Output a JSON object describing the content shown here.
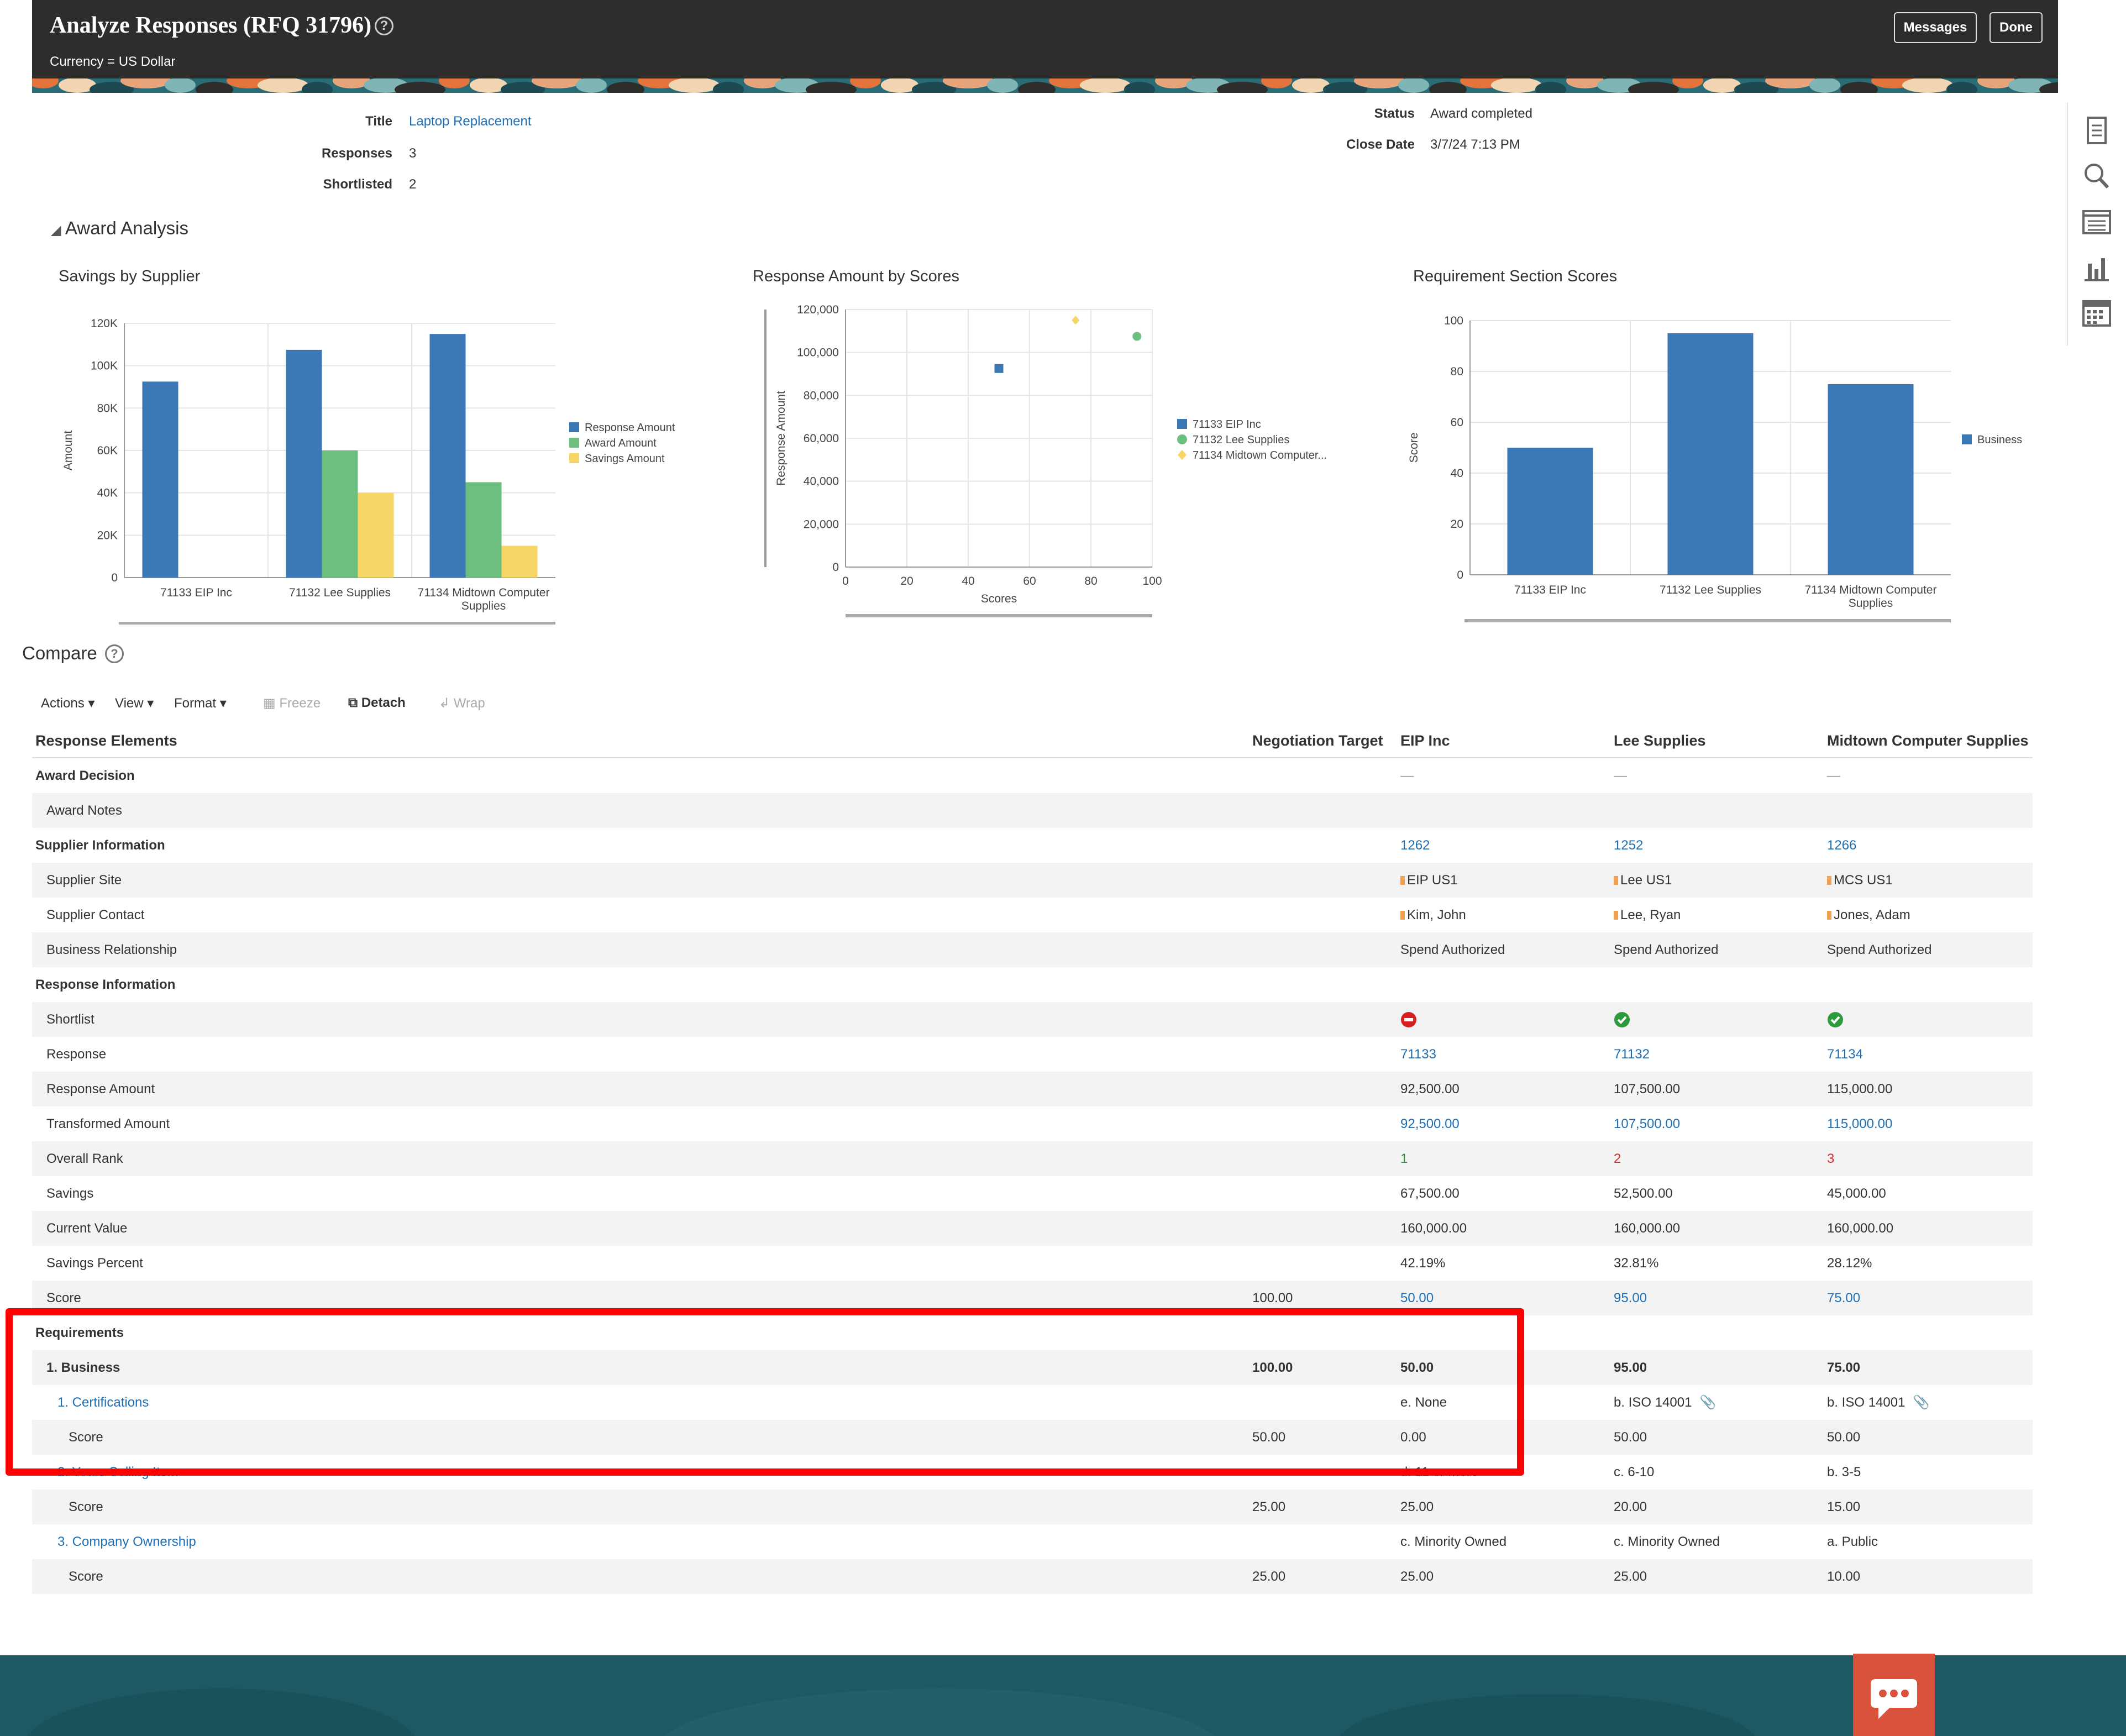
{
  "header": {
    "title": "Analyze Responses (RFQ 31796)",
    "currency": "Currency = US Dollar",
    "messages_label": "Messages",
    "done_label": "Done",
    "help_glyph": "?"
  },
  "summary": {
    "title_label": "Title",
    "title_value": "Laptop Replacement",
    "responses_label": "Responses",
    "responses_value": "3",
    "shortlisted_label": "Shortlisted",
    "shortlisted_value": "2",
    "status_label": "Status",
    "status_value": "Award completed",
    "close_date_label": "Close Date",
    "close_date_value": "3/7/24 7:13 PM"
  },
  "award_analysis": {
    "heading": "Award Analysis",
    "charts": {
      "savings": {
        "title": "Savings by Supplier",
        "ylabel": "Amount",
        "yticks": [
          "0",
          "20K",
          "40K",
          "60K",
          "80K",
          "100K",
          "120K"
        ],
        "cat_lines": [
          [
            "71133 EIP Inc"
          ],
          [
            "71132 Lee Supplies"
          ],
          [
            "71134 Midtown Computer",
            "Supplies"
          ]
        ],
        "legend": [
          "Response Amount",
          "Award Amount",
          "Savings Amount"
        ]
      },
      "scatter": {
        "title": "Response Amount by Scores",
        "ylabel": "Response Amount",
        "xlabel": "Scores",
        "yticks": [
          "0",
          "20,000",
          "40,000",
          "60,000",
          "80,000",
          "100,000",
          "120,000"
        ],
        "xticks": [
          "0",
          "20",
          "40",
          "60",
          "80",
          "100"
        ],
        "legend": [
          "71133 EIP Inc",
          "71132 Lee Supplies",
          "71134 Midtown Computer..."
        ]
      },
      "req_scores": {
        "title": "Requirement Section Scores",
        "ylabel": "Score",
        "yticks": [
          "0",
          "20",
          "40",
          "60",
          "80",
          "100"
        ],
        "cat_lines": [
          [
            "71133 EIP Inc"
          ],
          [
            "71132 Lee Supplies"
          ],
          [
            "71134 Midtown Computer",
            "Supplies"
          ]
        ],
        "legend": [
          "Business"
        ]
      }
    }
  },
  "chart_data": [
    {
      "type": "bar",
      "title": "Savings by Supplier",
      "ylabel": "Amount",
      "categories": [
        "71133 EIP Inc",
        "71132 Lee Supplies",
        "71134 Midtown Computer Supplies"
      ],
      "series": [
        {
          "name": "Response Amount",
          "values": [
            92500,
            107500,
            115000
          ],
          "color": "#3b78b5"
        },
        {
          "name": "Award Amount",
          "values": [
            0,
            60000,
            45000
          ],
          "color": "#6dbf7f"
        },
        {
          "name": "Savings Amount",
          "values": [
            0,
            40000,
            15000
          ],
          "color": "#f5d565"
        }
      ],
      "ylim": [
        0,
        120000
      ],
      "legend": "right"
    },
    {
      "type": "scatter",
      "title": "Response Amount by Scores",
      "xlabel": "Scores",
      "ylabel": "Response Amount",
      "series": [
        {
          "name": "71133 EIP Inc",
          "x": [
            50
          ],
          "y": [
            92500
          ],
          "color": "#3b78b5"
        },
        {
          "name": "71132 Lee Supplies",
          "x": [
            95
          ],
          "y": [
            107500
          ],
          "color": "#6dbf7f"
        },
        {
          "name": "71134 Midtown Computer...",
          "x": [
            75
          ],
          "y": [
            115000
          ],
          "color": "#f5d565"
        }
      ],
      "xlim": [
        0,
        100
      ],
      "ylim": [
        0,
        120000
      ],
      "legend": "right"
    },
    {
      "type": "bar",
      "title": "Requirement Section Scores",
      "ylabel": "Score",
      "categories": [
        "71133 EIP Inc",
        "71132 Lee Supplies",
        "71134 Midtown Computer Supplies"
      ],
      "series": [
        {
          "name": "Business",
          "values": [
            50,
            95,
            75
          ],
          "color": "#3b78b5"
        }
      ],
      "ylim": [
        0,
        100
      ],
      "legend": "right"
    }
  ],
  "compare": {
    "title": "Compare",
    "toolbar": {
      "actions": "Actions",
      "view": "View",
      "format": "Format",
      "freeze": "Freeze",
      "detach": "Detach",
      "wrap": "Wrap"
    },
    "columns": {
      "elements": "Response Elements",
      "target": "Negotiation Target",
      "c1": "EIP Inc",
      "c2": "Lee Supplies",
      "c3": "Midtown Computer Supplies"
    },
    "rows": [
      {
        "label": "Award Decision",
        "indent": 0,
        "bold": true,
        "target": "",
        "c1": "—",
        "c2": "—",
        "c3": "—",
        "style": "dash"
      },
      {
        "label": "Award Notes",
        "indent": 1,
        "bold": false,
        "target": "",
        "c1": "",
        "c2": "",
        "c3": ""
      },
      {
        "label": "Supplier Information",
        "indent": 0,
        "bold": true,
        "target": "",
        "c1": "1262",
        "c2": "1252",
        "c3": "1266",
        "style": "link"
      },
      {
        "label": "Supplier Site",
        "indent": 1,
        "bold": false,
        "target": "",
        "c1": "EIP US1",
        "c2": "Lee US1",
        "c3": "MCS US1",
        "style": "flag"
      },
      {
        "label": "Supplier Contact",
        "indent": 1,
        "bold": false,
        "target": "",
        "c1": "Kim, John",
        "c2": "Lee, Ryan",
        "c3": "Jones, Adam",
        "style": "flag"
      },
      {
        "label": "Business Relationship",
        "indent": 1,
        "bold": false,
        "target": "",
        "c1": "Spend Authorized",
        "c2": "Spend Authorized",
        "c3": "Spend Authorized"
      },
      {
        "label": "Response Information",
        "indent": 0,
        "bold": true,
        "target": "",
        "c1": "",
        "c2": "",
        "c3": ""
      },
      {
        "label": "Shortlist",
        "indent": 1,
        "bold": false,
        "target": "",
        "c1": "",
        "c2": "",
        "c3": "",
        "style": "shortlist"
      },
      {
        "label": "Response",
        "indent": 1,
        "bold": false,
        "target": "",
        "c1": "71133",
        "c2": "71132",
        "c3": "71134",
        "style": "link"
      },
      {
        "label": "Response Amount",
        "indent": 1,
        "bold": false,
        "target": "",
        "c1": "92,500.00",
        "c2": "107,500.00",
        "c3": "115,000.00"
      },
      {
        "label": "Transformed Amount",
        "indent": 1,
        "bold": false,
        "target": "",
        "c1": "92,500.00",
        "c2": "107,500.00",
        "c3": "115,000.00",
        "style": "link"
      },
      {
        "label": "Overall Rank",
        "indent": 1,
        "bold": false,
        "target": "",
        "c1": "1",
        "c2": "2",
        "c3": "3",
        "style": "rank"
      },
      {
        "label": "Savings",
        "indent": 1,
        "bold": false,
        "target": "",
        "c1": "67,500.00",
        "c2": "52,500.00",
        "c3": "45,000.00"
      },
      {
        "label": "Current Value",
        "indent": 1,
        "bold": false,
        "target": "",
        "c1": "160,000.00",
        "c2": "160,000.00",
        "c3": "160,000.00"
      },
      {
        "label": "Savings Percent",
        "indent": 1,
        "bold": false,
        "target": "",
        "c1": "42.19%",
        "c2": "32.81%",
        "c3": "28.12%"
      },
      {
        "label": "Score",
        "indent": 1,
        "bold": false,
        "target": "100.00",
        "c1": "50.00",
        "c2": "95.00",
        "c3": "75.00",
        "style": "link"
      },
      {
        "label": "Requirements",
        "indent": 0,
        "bold": true,
        "target": "",
        "c1": "",
        "c2": "",
        "c3": ""
      },
      {
        "label": "1. Business",
        "indent": 1,
        "bold": true,
        "target": "100.00",
        "c1": "50.00",
        "c2": "95.00",
        "c3": "75.00"
      },
      {
        "label": "1. Certifications",
        "indent": 2,
        "bold": false,
        "target": "",
        "c1": "e. None",
        "c2": "b. ISO 14001",
        "c3": "b. ISO 14001",
        "style": "cert",
        "labelLink": true
      },
      {
        "label": "Score",
        "indent": 3,
        "bold": false,
        "target": "50.00",
        "c1": "0.00",
        "c2": "50.00",
        "c3": "50.00"
      },
      {
        "label": "2. Years Selling Item",
        "indent": 2,
        "bold": false,
        "target": "",
        "c1": "d. 11 or more",
        "c2": "c. 6-10",
        "c3": "b. 3-5",
        "labelLink": true
      },
      {
        "label": "Score",
        "indent": 3,
        "bold": false,
        "target": "25.00",
        "c1": "25.00",
        "c2": "20.00",
        "c3": "15.00"
      },
      {
        "label": "3. Company Ownership",
        "indent": 2,
        "bold": false,
        "target": "",
        "c1": "c. Minority Owned",
        "c2": "c. Minority Owned",
        "c3": "a. Public",
        "labelLink": true
      },
      {
        "label": "Score",
        "indent": 3,
        "bold": false,
        "target": "25.00",
        "c1": "25.00",
        "c2": "25.00",
        "c3": "10.00"
      }
    ]
  },
  "colors": {
    "accent": "#1f6fb5",
    "header_bg": "#2f2d2b",
    "highlight": "#ff0000",
    "footer": "#1d5963",
    "chat": "#d9533c"
  },
  "icons": {
    "side": [
      "document-icon",
      "search-icon",
      "list-icon",
      "bar-chart-icon",
      "calendar-icon"
    ],
    "chat": "chat-icon"
  }
}
